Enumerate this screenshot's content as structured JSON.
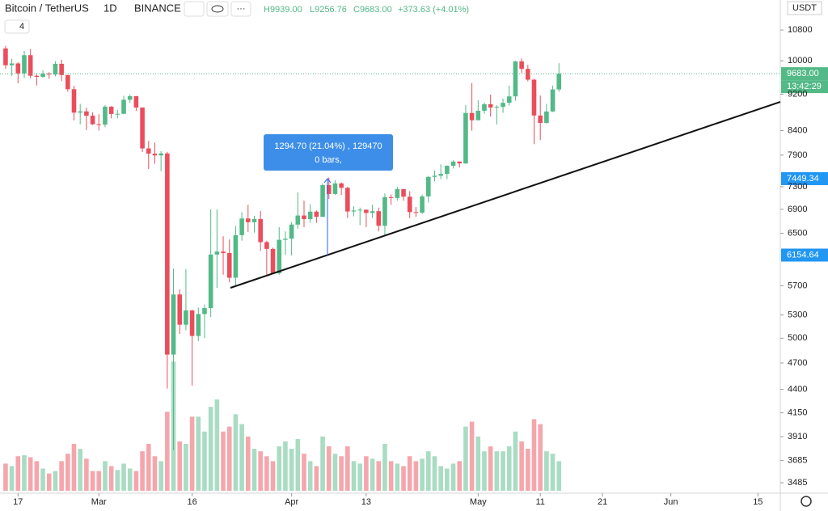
{
  "chart_data": {
    "type": "candlestick",
    "title": "Bitcoin / TetherUS",
    "interval": "1D",
    "exchange": "BINANCE",
    "legend_high": "H9939.00",
    "legend_low": "L9256.76",
    "legend_close": "C9683.00",
    "legend_change": "+373.63 (+4.01%)",
    "indicator_count": "4",
    "currency": "USDT",
    "countdown": "13:42:29",
    "last_price": {
      "value": 9683,
      "label": "9683.00"
    },
    "measure_from": {
      "value": 6154.64,
      "label": "6154.64"
    },
    "measure_to": {
      "value": 7449.34,
      "label": "7449.34"
    },
    "measure_text": "1294.70 (21.04%) , 129470",
    "measure_bars": "0 bars,",
    "up_color": "#53b987",
    "down_color": "#eb4d5c",
    "log_scale": true,
    "grid": false,
    "xlim": [
      -0.9,
      124.6
    ],
    "xticks": [
      {
        "value": 2,
        "label": "17"
      },
      {
        "value": 15,
        "label": "Mar"
      },
      {
        "value": 30,
        "label": "16"
      },
      {
        "value": 46,
        "label": "Apr"
      },
      {
        "value": 58,
        "label": "13"
      },
      {
        "value": 76,
        "label": "May"
      },
      {
        "value": 86,
        "label": "11"
      },
      {
        "value": 96,
        "label": "21"
      },
      {
        "value": 107,
        "label": "Jun"
      },
      {
        "value": 121,
        "label": "15"
      }
    ],
    "ylim": [
      3395,
      11640
    ],
    "yticks": [
      10800,
      10000,
      9200,
      8400,
      7900,
      7300,
      6900,
      6500,
      5700,
      5300,
      5000,
      4700,
      4400,
      4150,
      3910,
      3685,
      3485
    ],
    "x": [
      0,
      1,
      2,
      3,
      4,
      5,
      6,
      7,
      8,
      9,
      10,
      11,
      12,
      13,
      14,
      15,
      16,
      17,
      18,
      19,
      20,
      21,
      22,
      23,
      24,
      25,
      26,
      27,
      28,
      29,
      30,
      31,
      32,
      33,
      34,
      35,
      36,
      37,
      38,
      39,
      40,
      41,
      42,
      43,
      44,
      45,
      46,
      47,
      48,
      49,
      50,
      51,
      52,
      53,
      54,
      55,
      56,
      57,
      58,
      59,
      60,
      61,
      62,
      63,
      64,
      65,
      66,
      67,
      68,
      69,
      70,
      71,
      72,
      73,
      74,
      75,
      76,
      77,
      78,
      79,
      80,
      81,
      82,
      83,
      84,
      85,
      86,
      87,
      88,
      89
    ],
    "open": [
      10313,
      9889,
      9934,
      9690,
      10141,
      9633,
      9608,
      9686,
      9663,
      9925,
      9650,
      9315,
      8785,
      8813,
      8718,
      8533,
      8526,
      8917,
      8756,
      8760,
      9072,
      9153,
      8897,
      8034,
      7929,
      7895,
      7934,
      4800,
      5578,
      5172,
      5361,
      5029,
      5312,
      5391,
      6163,
      6209,
      6186,
      5816,
      6469,
      6744,
      6681,
      6734,
      6357,
      6250,
      5881,
      6394,
      6411,
      6642,
      6794,
      6733,
      6860,
      6772,
      7330,
      7170,
      7362,
      7281,
      6863,
      6880,
      6893,
      6838,
      6868,
      6622,
      7114,
      7098,
      7258,
      7122,
      6852,
      6843,
      7126,
      7482,
      7504,
      7538,
      7693,
      7774,
      7738,
      8778,
      8620,
      8826,
      8972,
      8897,
      8912,
      9003,
      9149,
      9986,
      9800,
      9539,
      8722,
      8561,
      8810,
      9309
    ],
    "high": [
      10380,
      10050,
      9964,
      10250,
      10300,
      9681,
      9760,
      9720,
      9990,
      10027,
      9657,
      9395,
      8978,
      8895,
      8790,
      8750,
      8950,
      8930,
      8848,
      9163,
      9190,
      9160,
      8897,
      8186,
      8150,
      7980,
      7967,
      5950,
      5650,
      5940,
      5366,
      5400,
      5440,
      6900,
      6900,
      6450,
      6400,
      6620,
      6850,
      6980,
      6790,
      6870,
      6380,
      6270,
      6600,
      6530,
      6680,
      7200,
      7050,
      6990,
      6880,
      7360,
      7470,
      7420,
      7380,
      7300,
      6950,
      6930,
      6900,
      6980,
      6930,
      7180,
      7160,
      7300,
      7260,
      7220,
      6940,
      7160,
      7500,
      7600,
      7720,
      7700,
      7800,
      7780,
      8950,
      9460,
      9060,
      9010,
      9190,
      8950,
      9100,
      9400,
      10000,
      10060,
      9900,
      9560,
      9170,
      8980,
      9400,
      9939
    ],
    "low": [
      9801,
      9631,
      9455,
      9576,
      9570,
      9400,
      9582,
      9560,
      9620,
      9507,
      9260,
      8616,
      8530,
      8410,
      8520,
      8400,
      8470,
      8660,
      8660,
      8750,
      9000,
      8820,
      7960,
      7630,
      7732,
      7590,
      4410,
      3782,
      5055,
      5100,
      4442,
      4965,
      5000,
      5270,
      5670,
      5860,
      5750,
      5690,
      6380,
      6520,
      6510,
      6220,
      5860,
      5870,
      5860,
      6160,
      6150,
      6570,
      6600,
      6670,
      6670,
      6770,
      7080,
      7150,
      7150,
      6750,
      6780,
      6630,
      6600,
      6750,
      6530,
      6460,
      6980,
      7050,
      7050,
      6750,
      6770,
      6820,
      7020,
      7400,
      7440,
      7440,
      7640,
      7660,
      7730,
      8400,
      8620,
      8760,
      8700,
      8530,
      8780,
      8940,
      9050,
      9700,
      9500,
      8120,
      8200,
      8550,
      8800,
      9256.76
    ],
    "close": [
      9889,
      9934,
      9690,
      10141,
      9633,
      9608,
      9686,
      9663,
      9925,
      9650,
      9315,
      8785,
      8813,
      8718,
      8533,
      8526,
      8917,
      8756,
      8760,
      9072,
      9153,
      8897,
      8034,
      7929,
      7895,
      7934,
      4800,
      5578,
      5172,
      5361,
      5029,
      5312,
      5391,
      6163,
      6209,
      6186,
      5816,
      6469,
      6744,
      6681,
      6734,
      6357,
      6250,
      5881,
      6394,
      6411,
      6642,
      6794,
      6733,
      6860,
      6772,
      7330,
      7170,
      7362,
      7281,
      6863,
      6880,
      6893,
      6838,
      6868,
      6622,
      7114,
      7098,
      7258,
      7122,
      6852,
      6843,
      7126,
      7482,
      7504,
      7538,
      7693,
      7774,
      7738,
      8778,
      8620,
      8826,
      8972,
      8897,
      8912,
      9003,
      9149,
      9986,
      9800,
      9539,
      8722,
      8561,
      8810,
      9309,
      9683
    ],
    "volume": [
      55000,
      50000,
      70000,
      72000,
      68000,
      60000,
      45000,
      35000,
      40000,
      60000,
      75000,
      95000,
      85000,
      65000,
      40000,
      40000,
      60000,
      50000,
      42000,
      55000,
      45000,
      40000,
      80000,
      95000,
      70000,
      60000,
      160000,
      262000,
      100000,
      95000,
      150000,
      150000,
      120000,
      170000,
      185000,
      120000,
      130000,
      155000,
      135000,
      110000,
      85000,
      80000,
      70000,
      60000,
      90000,
      100000,
      85000,
      105000,
      75000,
      60000,
      50000,
      110000,
      90000,
      75000,
      70000,
      90000,
      60000,
      55000,
      70000,
      65000,
      60000,
      95000,
      60000,
      55000,
      50000,
      70000,
      60000,
      65000,
      80000,
      70000,
      50000,
      45000,
      55000,
      60000,
      130000,
      140000,
      110000,
      80000,
      90000,
      80000,
      80000,
      90000,
      120000,
      100000,
      85000,
      145000,
      135000,
      80000,
      75000,
      60000
    ]
  }
}
